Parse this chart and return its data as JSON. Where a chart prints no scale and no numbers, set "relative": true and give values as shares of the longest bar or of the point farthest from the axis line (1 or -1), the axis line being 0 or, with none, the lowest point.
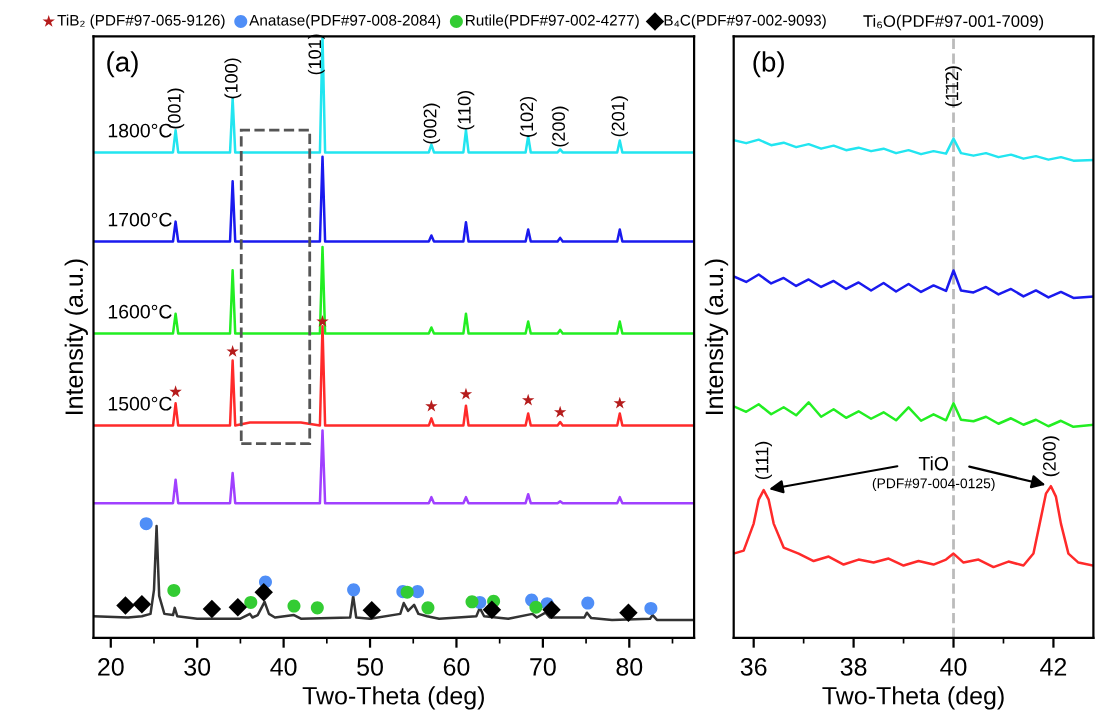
{
  "chart_data": [
    {
      "type": "line",
      "relative": true,
      "xlim": [
        18,
        87.5
      ],
      "xticks": [
        20,
        30,
        40,
        50,
        60,
        70,
        80
      ],
      "xlabel": "Two-Theta (deg)",
      "ylabel": "Intensity (a.u.)",
      "legend": "top",
      "series": [
        {
          "type": "line",
          "name": "1800°C",
          "color": "#22e5f0",
          "x": [
            18,
            27.2,
            27.5,
            27.8,
            33.8,
            34.1,
            34.4,
            36.1,
            42.0,
            44.2,
            44.5,
            44.8,
            56.8,
            57.1,
            57.4,
            60.8,
            61.1,
            61.4,
            68.0,
            68.3,
            68.6,
            71.7,
            72.0,
            72.3,
            78.6,
            78.9,
            79.2,
            87.5
          ],
          "values": [
            0.807,
            0.807,
            0.844,
            0.807,
            0.807,
            0.897,
            0.807,
            0.807,
            0.807,
            0.807,
            1.0,
            0.807,
            0.807,
            0.82,
            0.807,
            0.807,
            0.844,
            0.807,
            0.807,
            0.834,
            0.807,
            0.807,
            0.812,
            0.807,
            0.807,
            0.827,
            0.807,
            0.807
          ]
        },
        {
          "type": "line",
          "name": "1700°C",
          "color": "#1a1aee",
          "x": [
            18,
            27.2,
            27.5,
            27.8,
            33.8,
            34.1,
            34.4,
            36.1,
            42.0,
            44.2,
            44.5,
            44.8,
            56.8,
            57.1,
            57.4,
            60.8,
            61.1,
            61.4,
            68.0,
            68.3,
            68.6,
            71.7,
            72.0,
            72.3,
            78.6,
            78.9,
            79.2,
            87.5
          ],
          "values": [
            0.659,
            0.659,
            0.692,
            0.659,
            0.659,
            0.759,
            0.659,
            0.659,
            0.659,
            0.659,
            0.8,
            0.659,
            0.659,
            0.669,
            0.659,
            0.659,
            0.691,
            0.659,
            0.659,
            0.679,
            0.659,
            0.659,
            0.665,
            0.659,
            0.659,
            0.679,
            0.659,
            0.659
          ]
        },
        {
          "type": "line",
          "name": "1600°C",
          "color": "#22ee22",
          "x": [
            18,
            27.2,
            27.5,
            27.8,
            33.8,
            34.1,
            34.4,
            36.1,
            42.0,
            44.2,
            44.5,
            44.8,
            56.8,
            57.1,
            57.4,
            60.8,
            61.1,
            61.4,
            68.0,
            68.3,
            68.6,
            71.7,
            72.0,
            72.3,
            78.6,
            78.9,
            79.2,
            87.5
          ],
          "values": [
            0.506,
            0.506,
            0.539,
            0.506,
            0.506,
            0.611,
            0.506,
            0.506,
            0.506,
            0.506,
            0.65,
            0.506,
            0.506,
            0.516,
            0.506,
            0.506,
            0.539,
            0.506,
            0.506,
            0.526,
            0.506,
            0.506,
            0.512,
            0.506,
            0.506,
            0.526,
            0.506,
            0.506
          ]
        },
        {
          "type": "line",
          "name": "1500°C",
          "color": "#ff2a2a",
          "x": [
            18,
            27.2,
            27.5,
            27.8,
            33.8,
            34.1,
            34.4,
            36.1,
            42.0,
            44.2,
            44.5,
            44.8,
            56.8,
            57.1,
            57.4,
            60.8,
            61.1,
            61.4,
            68.0,
            68.3,
            68.6,
            71.7,
            72.0,
            72.3,
            78.6,
            78.9,
            79.2,
            87.5
          ],
          "values": [
            0.353,
            0.353,
            0.39,
            0.353,
            0.353,
            0.461,
            0.353,
            0.358,
            0.358,
            0.353,
            0.518,
            0.353,
            0.353,
            0.365,
            0.353,
            0.353,
            0.386,
            0.353,
            0.353,
            0.373,
            0.353,
            0.353,
            0.359,
            0.353,
            0.353,
            0.373,
            0.353,
            0.353
          ]
        },
        {
          "type": "line",
          "color": "#a040ff",
          "x": [
            18,
            27.2,
            27.5,
            27.8,
            33.8,
            34.1,
            34.4,
            36.1,
            42.0,
            44.2,
            44.5,
            44.8,
            56.8,
            57.1,
            57.4,
            60.8,
            61.1,
            61.4,
            68.0,
            68.3,
            68.6,
            71.7,
            72.0,
            72.3,
            78.6,
            78.9,
            79.2,
            87.5
          ],
          "values": [
            0.224,
            0.224,
            0.263,
            0.224,
            0.224,
            0.274,
            0.224,
            0.224,
            0.224,
            0.224,
            0.345,
            0.224,
            0.224,
            0.234,
            0.224,
            0.224,
            0.234,
            0.224,
            0.224,
            0.239,
            0.224,
            0.224,
            0.227,
            0.224,
            0.224,
            0.234,
            0.224,
            0.224
          ]
        },
        {
          "type": "line",
          "color": "#333333",
          "x": [
            18,
            22,
            23.6,
            24.6,
            25.0,
            25.3,
            25.6,
            26.2,
            27.2,
            27.4,
            27.7,
            30,
            35,
            36.1,
            36.4,
            37.0,
            37.8,
            38.3,
            39,
            41.2,
            42,
            47.7,
            48.05,
            48.4,
            50,
            53.5,
            53.9,
            54.4,
            55.1,
            55.6,
            56.6,
            58,
            62.3,
            62.7,
            63.2,
            66,
            68.8,
            69.3,
            70.3,
            70.8,
            74.8,
            75.1,
            75.6,
            78,
            82.4,
            82.7,
            83.2,
            87.5
          ],
          "values": [
            0.036,
            0.034,
            0.036,
            0.04,
            0.08,
            0.186,
            0.07,
            0.04,
            0.038,
            0.05,
            0.036,
            0.032,
            0.032,
            0.04,
            0.034,
            0.038,
            0.06,
            0.04,
            0.034,
            0.038,
            0.032,
            0.034,
            0.07,
            0.034,
            0.032,
            0.04,
            0.058,
            0.045,
            0.055,
            0.04,
            0.036,
            0.032,
            0.036,
            0.05,
            0.036,
            0.032,
            0.04,
            0.034,
            0.042,
            0.034,
            0.034,
            0.042,
            0.033,
            0.03,
            0.032,
            0.038,
            0.03,
            0.03
          ]
        },
        {
          "type": "scatter",
          "name": "TiB₂ (PDF#97-065-9126)",
          "color": "#b51c1c",
          "marker": "star",
          "x": [
            27.5,
            34.1,
            44.5,
            57.1,
            61.1,
            68.3,
            72.0,
            78.9
          ],
          "values": [
            0.409,
            0.476,
            0.526,
            0.385,
            0.405,
            0.395,
            0.375,
            0.39
          ]
        },
        {
          "type": "scatter",
          "name": "Anatase(PDF#97-008-2084)",
          "color": "#4f8ef7",
          "marker": "circle",
          "x": [
            24.1,
            37.9,
            48.1,
            53.8,
            55.5,
            62.7,
            68.7,
            70.5,
            75.2,
            82.5
          ],
          "values": [
            0.19,
            0.093,
            0.08,
            0.077,
            0.077,
            0.059,
            0.063,
            0.057,
            0.058,
            0.049
          ]
        },
        {
          "type": "scatter",
          "name": "Rutile(PDF#97-002-4277)",
          "color": "#33cc33",
          "marker": "circle",
          "x": [
            27.3,
            36.2,
            41.2,
            43.9,
            54.3,
            56.7,
            61.8,
            64.3,
            69.2
          ],
          "values": [
            0.079,
            0.059,
            0.053,
            0.05,
            0.076,
            0.05,
            0.06,
            0.061,
            0.051
          ]
        },
        {
          "type": "scatter",
          "name": "B₄C(PDF#97-002-9093)",
          "color": "#000000",
          "marker": "diamond",
          "x": [
            21.7,
            23.6,
            31.7,
            34.7,
            37.7,
            50.2,
            64.1,
            71.0,
            79.9
          ],
          "values": [
            0.054,
            0.056,
            0.048,
            0.051,
            0.076,
            0.046,
            0.047,
            0.047,
            0.042
          ]
        }
      ],
      "annotations": [
        "(a)",
        "(001)",
        "(100)",
        "(101)",
        "(002)",
        "(110)",
        "(102)",
        "(200)",
        "(201)"
      ]
    },
    {
      "type": "line",
      "relative": true,
      "xlim": [
        35.6,
        42.8
      ],
      "xticks": [
        36,
        38,
        40,
        42
      ],
      "xlabel": "Two-Theta (deg)",
      "ylabel": "Intensity (a.u.)",
      "series": [
        {
          "type": "line",
          "color": "#22e5f0",
          "x": [
            35.6,
            35.85,
            36.1,
            36.35,
            36.6,
            36.85,
            37.1,
            37.35,
            37.6,
            37.85,
            38.1,
            38.35,
            38.6,
            38.85,
            39.1,
            39.35,
            39.6,
            39.85,
            40.0,
            40.15,
            40.4,
            40.65,
            40.9,
            41.15,
            41.4,
            41.65,
            41.9,
            42.15,
            42.4,
            42.8
          ],
          "values": [
            0.997,
            0.991,
            0.998,
            0.987,
            0.992,
            0.983,
            0.989,
            0.98,
            0.986,
            0.977,
            0.982,
            0.975,
            0.98,
            0.971,
            0.977,
            0.969,
            0.975,
            0.97,
            1.0,
            0.971,
            0.966,
            0.971,
            0.963,
            0.968,
            0.96,
            0.965,
            0.958,
            0.963,
            0.956,
            0.957
          ]
        },
        {
          "type": "line",
          "color": "#1a1aee",
          "x": [
            35.6,
            35.85,
            36.1,
            36.35,
            36.6,
            36.85,
            37.1,
            37.35,
            37.6,
            37.85,
            38.1,
            38.35,
            38.6,
            38.85,
            39.1,
            39.35,
            39.6,
            39.85,
            40.0,
            40.15,
            40.4,
            40.65,
            40.9,
            41.15,
            41.4,
            41.65,
            41.9,
            42.15,
            42.4,
            42.8
          ],
          "values": [
            0.724,
            0.713,
            0.728,
            0.71,
            0.721,
            0.705,
            0.718,
            0.703,
            0.715,
            0.699,
            0.712,
            0.696,
            0.711,
            0.694,
            0.709,
            0.693,
            0.706,
            0.695,
            0.736,
            0.696,
            0.692,
            0.703,
            0.688,
            0.699,
            0.684,
            0.696,
            0.682,
            0.693,
            0.681,
            0.684
          ]
        },
        {
          "type": "line",
          "color": "#22ee22",
          "x": [
            35.6,
            35.85,
            36.1,
            36.35,
            36.6,
            36.85,
            37.1,
            37.35,
            37.6,
            37.85,
            38.1,
            38.35,
            38.6,
            38.85,
            39.1,
            39.35,
            39.6,
            39.85,
            40.0,
            40.15,
            40.4,
            40.65,
            40.9,
            41.15,
            41.4,
            41.65,
            41.9,
            42.15,
            42.4,
            42.8
          ],
          "values": [
            0.464,
            0.453,
            0.468,
            0.448,
            0.462,
            0.446,
            0.472,
            0.443,
            0.458,
            0.441,
            0.454,
            0.439,
            0.452,
            0.436,
            0.462,
            0.435,
            0.448,
            0.436,
            0.47,
            0.437,
            0.434,
            0.443,
            0.429,
            0.44,
            0.427,
            0.437,
            0.424,
            0.435,
            0.423,
            0.427
          ]
        },
        {
          "type": "line",
          "color": "#ff2a2a",
          "x": [
            35.6,
            35.8,
            36.0,
            36.1,
            36.2,
            36.3,
            36.4,
            36.6,
            36.9,
            37.2,
            37.5,
            37.8,
            38.1,
            38.4,
            38.7,
            39.0,
            39.3,
            39.6,
            39.85,
            40.0,
            40.2,
            40.5,
            40.8,
            41.1,
            41.4,
            41.6,
            41.75,
            41.85,
            41.95,
            42.05,
            42.15,
            42.3,
            42.5,
            42.8
          ],
          "values": [
            0.169,
            0.175,
            0.229,
            0.277,
            0.296,
            0.277,
            0.229,
            0.181,
            0.169,
            0.154,
            0.163,
            0.147,
            0.157,
            0.151,
            0.159,
            0.145,
            0.154,
            0.147,
            0.157,
            0.169,
            0.151,
            0.157,
            0.142,
            0.153,
            0.145,
            0.169,
            0.241,
            0.289,
            0.304,
            0.283,
            0.229,
            0.169,
            0.151,
            0.145
          ]
        }
      ],
      "ref_lines": [
        {
          "axis": "x",
          "value": 40,
          "label": "Ti₆O(PDF#97-001-7009)",
          "color": "#bbbbbb",
          "line_style": "dashed"
        }
      ],
      "annotations": [
        "(b)",
        "TiO",
        "(PDF#97-004-0125)",
        "(111)",
        "(200)",
        "(1̄1̄2)"
      ]
    }
  ]
}
